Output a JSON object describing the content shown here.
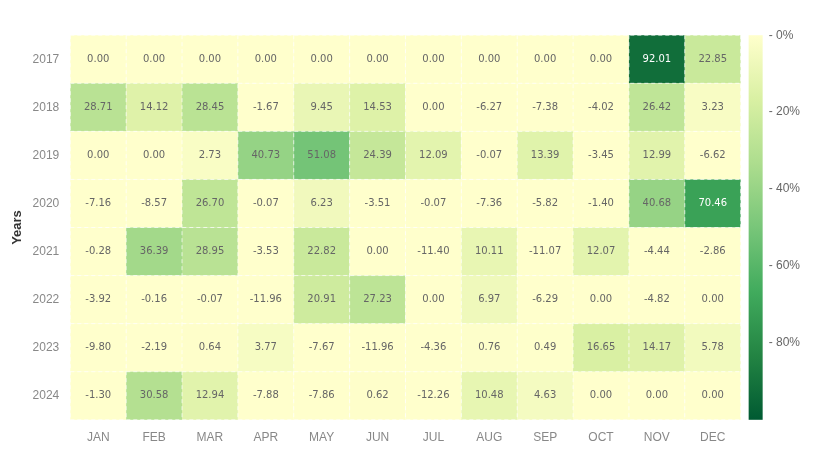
{
  "chart_data": {
    "type": "heatmap",
    "categories": [
      "JAN",
      "FEB",
      "MAR",
      "APR",
      "MAY",
      "JUN",
      "JUL",
      "AUG",
      "SEP",
      "OCT",
      "NOV",
      "DEC"
    ],
    "rows": [
      2017,
      2018,
      2019,
      2020,
      2021,
      2022,
      2023,
      2024
    ],
    "values": [
      [
        0.0,
        0.0,
        0.0,
        0.0,
        0.0,
        0.0,
        0.0,
        0.0,
        0.0,
        0.0,
        92.01,
        22.85
      ],
      [
        28.71,
        14.12,
        28.45,
        -1.67,
        9.45,
        14.53,
        0.0,
        -6.27,
        -7.38,
        -4.02,
        26.42,
        3.23
      ],
      [
        0.0,
        0.0,
        2.73,
        40.73,
        51.08,
        24.39,
        12.09,
        -0.07,
        13.39,
        -3.45,
        12.99,
        -6.62
      ],
      [
        -7.16,
        -8.57,
        26.7,
        -0.07,
        6.23,
        -3.51,
        -0.07,
        -7.36,
        -5.82,
        -1.4,
        40.68,
        70.46
      ],
      [
        -0.28,
        36.39,
        28.95,
        -3.53,
        22.82,
        0.0,
        -11.4,
        10.11,
        -11.07,
        12.07,
        -4.44,
        -2.86
      ],
      [
        -3.92,
        -0.16,
        -0.07,
        -11.96,
        20.91,
        27.23,
        0.0,
        6.97,
        -6.29,
        0.0,
        -4.82,
        0.0
      ],
      [
        -9.8,
        -2.19,
        0.64,
        3.77,
        -7.67,
        -11.96,
        -4.36,
        0.76,
        0.49,
        16.65,
        14.17,
        5.78
      ],
      [
        -1.3,
        30.58,
        12.94,
        -7.88,
        -7.86,
        0.62,
        -12.26,
        10.48,
        4.63,
        0.0,
        0.0,
        0.0
      ]
    ],
    "value_labels": [
      [
        "0.00",
        "0.00",
        "0.00",
        "0.00",
        "0.00",
        "0.00",
        "0.00",
        "0.00",
        "0.00",
        "0.00",
        "92.01",
        "22.85"
      ],
      [
        "28.71",
        "14.12",
        "28.45",
        "-1.67",
        "9.45",
        "14.53",
        "0.00",
        "-6.27",
        "-7.38",
        "-4.02",
        "26.42",
        "3.23"
      ],
      [
        "0.00",
        "0.00",
        "2.73",
        "40.73",
        "51.08",
        "24.39",
        "12.09",
        "-0.07",
        "13.39",
        "-3.45",
        "12.99",
        "-6.62"
      ],
      [
        "-7.16",
        "-8.57",
        "26.70",
        "-0.07",
        "6.23",
        "-3.51",
        "-0.07",
        "-7.36",
        "-5.82",
        "-1.40",
        "40.68",
        "70.46"
      ],
      [
        "-0.28",
        "36.39",
        "28.95",
        "-3.53",
        "22.82",
        "0.00",
        "-11.40",
        "10.11",
        "-11.07",
        "12.07",
        "-4.44",
        "-2.86"
      ],
      [
        "-3.92",
        "-0.16",
        "-0.07",
        "-11.96",
        "20.91",
        "27.23",
        "0.00",
        "6.97",
        "-6.29",
        "0.00",
        "-4.82",
        "0.00"
      ],
      [
        "-9.80",
        "-2.19",
        "0.64",
        "3.77",
        "-7.67",
        "-11.96",
        "-4.36",
        "0.76",
        "0.49",
        "16.65",
        "14.17",
        "5.78"
      ],
      [
        "-1.30",
        "30.58",
        "12.94",
        "-7.88",
        "-7.86",
        "0.62",
        "-12.26",
        "10.48",
        "4.63",
        "0.00",
        "0.00",
        "0.00"
      ]
    ],
    "ylabel": "Years",
    "colorbar_lim": [
      0,
      100
    ],
    "colorbar_ticks": [
      {
        "value": 0,
        "label": "- 0%"
      },
      {
        "value": 20,
        "label": "- 20%"
      },
      {
        "value": 40,
        "label": "- 40%"
      },
      {
        "value": 60,
        "label": "- 60%"
      },
      {
        "value": 80,
        "label": "- 80%"
      }
    ],
    "colormap": [
      "#ffffcc",
      "#d9f0a3",
      "#addd8e",
      "#78c679",
      "#41ab5d",
      "#238443",
      "#005a32"
    ],
    "grid": true,
    "data_labels": true
  }
}
